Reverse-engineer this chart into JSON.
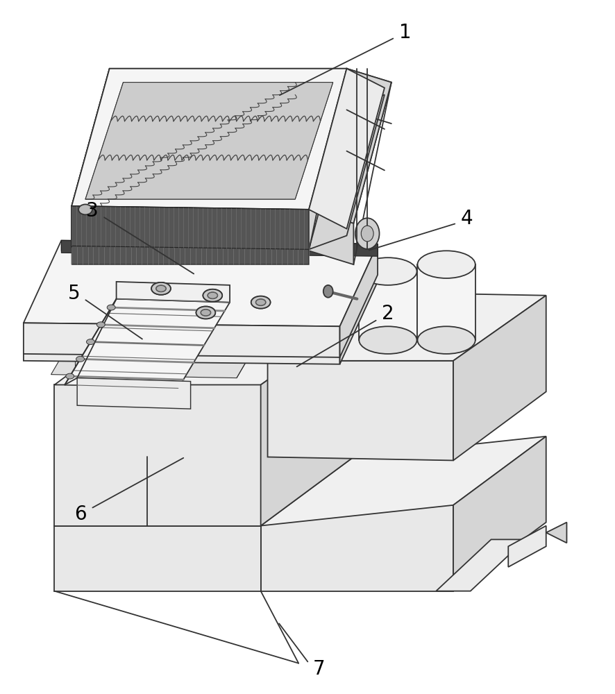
{
  "bg_color": "#ffffff",
  "line_color": "#333333",
  "lw": 1.3,
  "label_fontsize": 20,
  "fig_width": 8.86,
  "fig_height": 10.0
}
